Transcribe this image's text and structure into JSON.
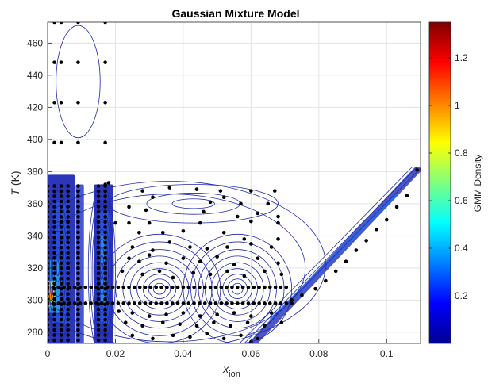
{
  "chart_data": {
    "type": "scatter",
    "title": "Gaussian Mixture Model",
    "xlabel": "x",
    "xlabel_sub": "ion",
    "ylabel_italic": "T",
    "ylabel_unit": " (K)",
    "colorbar_label": "GMM Density",
    "xlim": [
      0,
      0.11
    ],
    "ylim": [
      273,
      473
    ],
    "xticks": [
      0,
      0.02,
      0.04,
      0.06,
      0.08,
      0.1
    ],
    "xtick_labels": [
      "0",
      "0.02",
      "0.04",
      "0.06",
      "0.08",
      "0.1"
    ],
    "yticks": [
      280,
      300,
      320,
      340,
      360,
      380,
      400,
      420,
      440,
      460
    ],
    "ytick_labels": [
      "280",
      "300",
      "320",
      "340",
      "360",
      "380",
      "400",
      "420",
      "440",
      "460"
    ],
    "colorbar_range": [
      0,
      1.35
    ],
    "colorbar_ticks": [
      0.2,
      0.4,
      0.6,
      0.8,
      1,
      1.2
    ],
    "colorbar_tick_labels": [
      "0.2",
      "0.4",
      "0.6",
      "0.8",
      "1",
      "1.2"
    ],
    "grid": true,
    "contour_color": "#1f2aa8",
    "point_color": "#000000",
    "components": [
      {
        "mean": [
          0.009,
          436
        ],
        "semi_axes": [
          0.0065,
          35
        ]
      },
      {
        "mean": [
          0.043,
          360
        ],
        "semi_axes": [
          0.025,
          12
        ]
      },
      {
        "mean": [
          0.033,
          307
        ],
        "semi_axes": [
          0.018,
          34
        ]
      },
      {
        "mean": [
          0.056,
          307
        ],
        "semi_axes": [
          0.016,
          34
        ]
      },
      {
        "mean": [
          0.003,
          320
        ],
        "semi_axes": [
          0.004,
          48
        ]
      },
      {
        "mean": [
          0.016,
          318
        ],
        "semi_axes": [
          0.004,
          54
        ]
      }
    ],
    "points": [
      [
        0.002,
        473
      ],
      [
        0.004,
        473
      ],
      [
        0.009,
        473
      ],
      [
        0.017,
        473
      ],
      [
        0.002,
        448
      ],
      [
        0.004,
        448
      ],
      [
        0.009,
        448
      ],
      [
        0.017,
        448
      ],
      [
        0.002,
        423
      ],
      [
        0.004,
        423
      ],
      [
        0.009,
        423
      ],
      [
        0.017,
        423
      ],
      [
        0.002,
        398
      ],
      [
        0.004,
        398
      ],
      [
        0.009,
        398
      ],
      [
        0.017,
        398
      ],
      [
        0.018,
        373
      ],
      [
        0.017,
        372
      ],
      [
        0.028,
        368
      ],
      [
        0.036,
        370
      ],
      [
        0.044,
        369
      ],
      [
        0.051,
        368
      ],
      [
        0.06,
        368
      ],
      [
        0.067,
        368
      ],
      [
        0.031,
        364
      ],
      [
        0.052,
        364
      ],
      [
        0.024,
        358
      ],
      [
        0.048,
        361
      ],
      [
        0.057,
        360
      ],
      [
        0.065,
        360
      ],
      [
        0.029,
        356
      ],
      [
        0.046,
        355
      ],
      [
        0.056,
        352
      ],
      [
        0.062,
        354
      ],
      [
        0.068,
        352
      ],
      [
        0.02,
        348
      ],
      [
        0.024,
        348
      ],
      [
        0.03,
        348
      ],
      [
        0.045,
        348
      ],
      [
        0.06,
        349
      ],
      [
        0.068,
        348
      ],
      [
        0.027,
        342
      ],
      [
        0.034,
        342
      ],
      [
        0.04,
        343
      ],
      [
        0.052,
        342
      ],
      [
        0.058,
        338
      ],
      [
        0.068,
        338
      ],
      [
        0.025,
        333
      ],
      [
        0.031,
        331
      ],
      [
        0.036,
        336
      ],
      [
        0.042,
        333
      ],
      [
        0.047,
        332
      ],
      [
        0.053,
        333
      ],
      [
        0.06,
        335
      ],
      [
        0.066,
        333
      ],
      [
        0.024,
        326
      ],
      [
        0.027,
        324
      ],
      [
        0.03,
        328
      ],
      [
        0.035,
        323
      ],
      [
        0.04,
        326
      ],
      [
        0.045,
        324
      ],
      [
        0.05,
        327
      ],
      [
        0.055,
        322
      ],
      [
        0.062,
        326
      ],
      [
        0.068,
        323
      ],
      [
        0.022,
        318
      ],
      [
        0.028,
        316
      ],
      [
        0.033,
        318
      ],
      [
        0.037,
        314
      ],
      [
        0.043,
        317
      ],
      [
        0.048,
        316
      ],
      [
        0.053,
        318
      ],
      [
        0.058,
        315
      ],
      [
        0.064,
        318
      ],
      [
        0.069,
        316
      ],
      [
        0.021,
        293
      ],
      [
        0.025,
        292
      ],
      [
        0.03,
        290
      ],
      [
        0.035,
        291
      ],
      [
        0.04,
        292
      ],
      [
        0.045,
        290
      ],
      [
        0.05,
        291
      ],
      [
        0.055,
        292
      ],
      [
        0.06,
        290
      ],
      [
        0.066,
        292
      ],
      [
        0.023,
        286
      ],
      [
        0.028,
        284
      ],
      [
        0.034,
        286
      ],
      [
        0.039,
        285
      ],
      [
        0.044,
        284
      ],
      [
        0.049,
        286
      ],
      [
        0.054,
        284
      ],
      [
        0.059,
        286
      ],
      [
        0.064,
        284
      ],
      [
        0.069,
        286
      ],
      [
        0.025,
        278
      ],
      [
        0.031,
        276
      ],
      [
        0.037,
        278
      ],
      [
        0.042,
        277
      ],
      [
        0.047,
        279
      ],
      [
        0.052,
        276
      ],
      [
        0.057,
        278
      ],
      [
        0.062,
        276
      ],
      [
        0.06,
        274
      ],
      [
        0.072,
        300
      ],
      [
        0.075,
        303
      ],
      [
        0.079,
        307
      ],
      [
        0.082,
        312
      ],
      [
        0.085,
        318
      ],
      [
        0.088,
        324
      ],
      [
        0.091,
        331
      ],
      [
        0.094,
        337
      ],
      [
        0.097,
        344
      ],
      [
        0.1,
        350
      ],
      [
        0.103,
        358
      ],
      [
        0.106,
        365
      ],
      [
        0.109,
        381
      ]
    ],
    "dense_rows_T": [
      298,
      308
    ],
    "dense_cols_x": [
      0.0,
      0.002,
      0.004,
      0.006,
      0.009,
      0.015,
      0.017
    ]
  }
}
